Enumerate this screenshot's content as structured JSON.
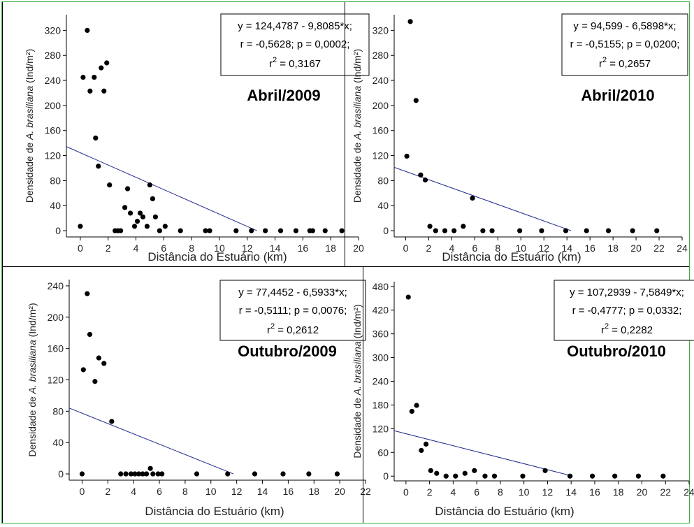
{
  "chart_data": [
    {
      "type": "scatter",
      "period_label": "Abril/2009",
      "xlabel": "Distância do Estuário (km)",
      "ylabel_pre": "Densidade de ",
      "ylabel_species": "A. brasiliana",
      "ylabel_post": " (Ind/m²)",
      "xlim": [
        -1,
        20
      ],
      "ylim": [
        -10,
        345
      ],
      "xticks": [
        0,
        2,
        4,
        6,
        8,
        10,
        12,
        14,
        16,
        18,
        20
      ],
      "yticks": [
        0,
        40,
        80,
        120,
        160,
        200,
        240,
        280,
        320
      ],
      "regression": {
        "intercept": 124.4787,
        "slope": -9.8085
      },
      "annotation": [
        "y = 124,4787 - 9,8085*x;",
        "r = -0,5628; p = 0,0002;",
        "r",
        "2",
        " = 0,3167"
      ],
      "x": [
        0,
        0.2,
        0.5,
        0.7,
        1.0,
        1.1,
        1.3,
        1.5,
        1.7,
        1.9,
        2.1,
        2.5,
        2.7,
        2.9,
        3.2,
        3.4,
        3.6,
        3.9,
        4.1,
        4.3,
        4.5,
        4.8,
        5.0,
        5.2,
        5.4,
        5.7,
        6.1,
        7.2,
        9.0,
        9.3,
        11.2,
        12.3,
        13.3,
        14.4,
        15.5,
        16.5,
        16.7,
        17.6,
        18.8
      ],
      "y": [
        7,
        245,
        320,
        223,
        245,
        148,
        103,
        260,
        223,
        268,
        73,
        0,
        0,
        0,
        37,
        67,
        28,
        7,
        15,
        28,
        22,
        7,
        73,
        51,
        22,
        0,
        7,
        0,
        0,
        0,
        0,
        0,
        0,
        0,
        0,
        0,
        0,
        0,
        0
      ]
    },
    {
      "type": "scatter",
      "period_label": "Abril/2010",
      "xlabel": "Distância do Estuário (km)",
      "ylabel_pre": "Densidade de ",
      "ylabel_species": "A. brasiliana",
      "ylabel_post": " (Ind/m²)",
      "xlim": [
        -1,
        24
      ],
      "ylim": [
        -10,
        345
      ],
      "xticks": [
        0,
        2,
        4,
        6,
        8,
        10,
        12,
        14,
        16,
        18,
        20,
        22,
        24
      ],
      "yticks": [
        0,
        40,
        80,
        120,
        160,
        200,
        240,
        280,
        320
      ],
      "regression": {
        "intercept": 94.599,
        "slope": -6.5898
      },
      "annotation": [
        "y = 94,599 - 6,5898*x;",
        "r = -0,5155; p = 0,0200;",
        "r",
        "2",
        " = 0,2657"
      ],
      "x": [
        0.1,
        0.4,
        0.9,
        1.3,
        1.7,
        2.1,
        2.6,
        3.4,
        4.2,
        5.0,
        5.8,
        6.7,
        7.5,
        9.9,
        11.8,
        13.9,
        15.7,
        17.6,
        19.7,
        21.8
      ],
      "y": [
        119,
        334,
        208,
        89,
        81,
        7,
        0,
        0,
        0,
        7,
        52,
        0,
        0,
        0,
        0,
        0,
        0,
        0,
        0,
        0
      ]
    },
    {
      "type": "scatter",
      "period_label": "Outubro/2009",
      "xlabel": "Distância do Estuário (km)",
      "ylabel_pre": "Densidade de ",
      "ylabel_species": "A. brasiliana",
      "ylabel_post": " (Ind/m²)",
      "xlim": [
        -1,
        22
      ],
      "ylim": [
        -8,
        248
      ],
      "xticks": [
        0,
        2,
        4,
        6,
        8,
        10,
        12,
        14,
        16,
        18,
        20,
        22
      ],
      "yticks": [
        0,
        40,
        80,
        120,
        160,
        200,
        240
      ],
      "regression": {
        "intercept": 77.4452,
        "slope": -6.5933
      },
      "annotation": [
        "y = 77,4452 - 6,5933*x;",
        "r = -0,5111; p = 0,0076;",
        "r",
        "2",
        " = 0,2612"
      ],
      "x": [
        0,
        0.1,
        0.4,
        0.6,
        1.0,
        1.3,
        1.7,
        2.3,
        3.0,
        3.4,
        3.8,
        4.1,
        4.4,
        4.7,
        5.0,
        5.3,
        5.5,
        5.9,
        6.2,
        8.9,
        11.3,
        13.4,
        15.6,
        17.6,
        19.8
      ],
      "y": [
        0,
        133,
        230,
        178,
        118,
        148,
        141,
        67,
        0,
        0,
        0,
        0,
        0,
        0,
        0,
        7,
        0,
        0,
        0,
        0,
        0,
        0,
        0,
        0,
        0
      ]
    },
    {
      "type": "scatter",
      "period_label": "Outubro/2010",
      "xlabel": "Distância do Estuário (km)",
      "ylabel_pre": "Densidade de ",
      "ylabel_species": "A. brasiliana",
      "ylabel_post": " (Ind/m²)",
      "xlim": [
        -1,
        24
      ],
      "ylim": [
        -12,
        492
      ],
      "xticks": [
        0,
        2,
        4,
        6,
        8,
        10,
        12,
        14,
        16,
        18,
        20,
        22,
        24
      ],
      "yticks": [
        0,
        60,
        120,
        180,
        240,
        300,
        360,
        420,
        480
      ],
      "regression": {
        "intercept": 107.2939,
        "slope": -7.5849
      },
      "annotation": [
        "y = 107,2939 - 7,5849*x;",
        "r = -0,4777; p = 0,0332;",
        "r",
        "2",
        " = 0,2282"
      ],
      "x": [
        0.2,
        0.5,
        0.9,
        1.3,
        1.7,
        2.1,
        2.6,
        3.4,
        4.2,
        5.0,
        5.8,
        6.7,
        7.5,
        9.9,
        11.8,
        13.9,
        15.8,
        17.7,
        19.7,
        21.8
      ],
      "y": [
        453,
        164,
        179,
        65,
        81,
        14,
        7,
        0,
        0,
        7,
        14,
        0,
        0,
        0,
        14,
        0,
        0,
        0,
        0,
        0
      ]
    }
  ]
}
